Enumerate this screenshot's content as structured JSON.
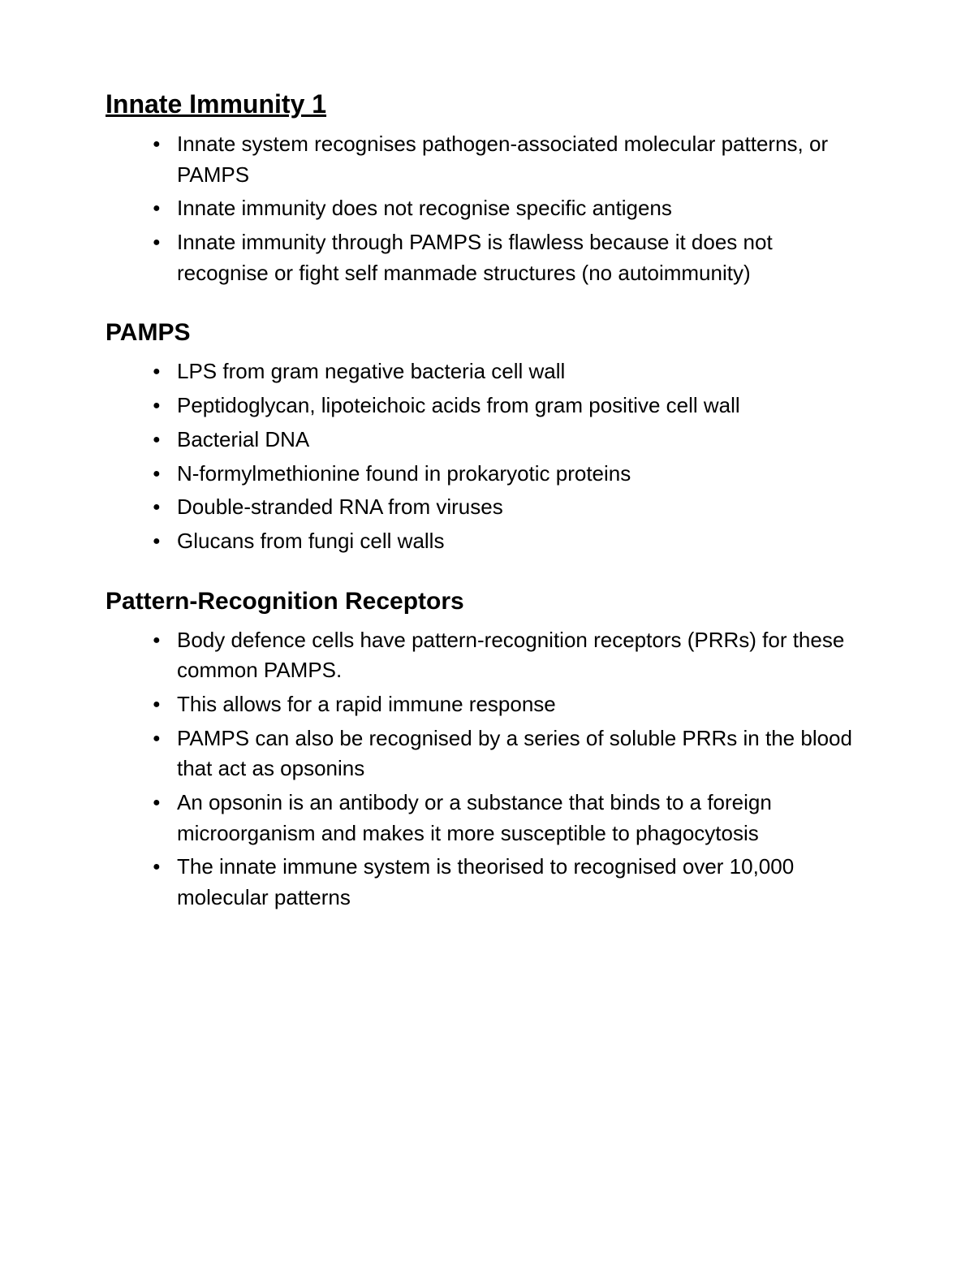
{
  "title": "Innate Immunity 1",
  "sections": [
    {
      "heading": null,
      "items": [
        "Innate system recognises pathogen-associated molecular patterns, or PAMPS",
        "Innate immunity does not recognise specific antigens",
        "Innate immunity through PAMPS is flawless because it does not recognise or fight self manmade structures (no autoimmunity)"
      ]
    },
    {
      "heading": "PAMPS",
      "items": [
        "LPS from gram negative bacteria cell wall",
        "Peptidoglycan, lipoteichoic acids from gram positive cell wall",
        "Bacterial DNA",
        "N-formylmethionine found in prokaryotic proteins",
        "Double-stranded RNA from viruses",
        "Glucans from fungi cell walls"
      ]
    },
    {
      "heading": "Pattern-Recognition Receptors",
      "items": [
        "Body defence cells have pattern-recognition receptors (PRRs) for these common PAMPS.",
        "This allows for a rapid immune response",
        "PAMPS can also be recognised by a series of soluble PRRs in the blood that act as opsonins",
        "An opsonin is an antibody or a substance that binds to a foreign microorganism and makes it more susceptible to phagocytosis",
        "The innate immune system is theorised to recognised over 10,000 molecular patterns"
      ]
    }
  ]
}
